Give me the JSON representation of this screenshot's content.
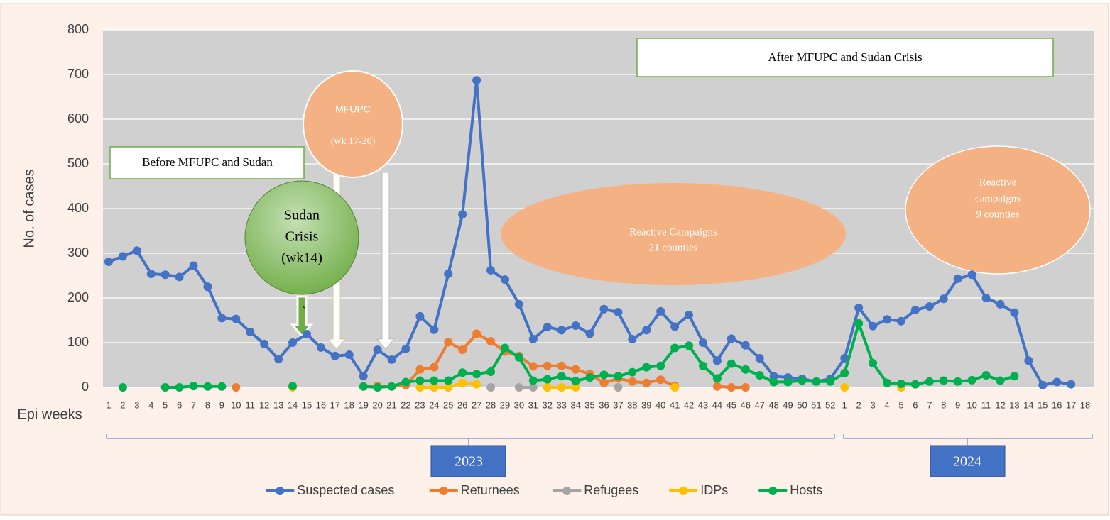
{
  "chart_data": {
    "type": "line",
    "y_label": "No. of cases",
    "x_label": "Epi weeks",
    "categories": [
      "1",
      "2",
      "3",
      "4",
      "5",
      "6",
      "7",
      "8",
      "9",
      "10",
      "11",
      "12",
      "13",
      "14",
      "15",
      "16",
      "17",
      "18",
      "19",
      "20",
      "21",
      "22",
      "23",
      "24",
      "25",
      "26",
      "27",
      "28",
      "29",
      "30",
      "31",
      "32",
      "33",
      "34",
      "35",
      "36",
      "37",
      "38",
      "39",
      "40",
      "41",
      "42",
      "43",
      "44",
      "45",
      "46",
      "47",
      "48",
      "49",
      "50",
      "51",
      "52",
      "1",
      "2",
      "3",
      "4",
      "5",
      "6",
      "7",
      "8",
      "9",
      "10",
      "11",
      "12",
      "13",
      "14",
      "15",
      "16",
      "17",
      "18"
    ],
    "x_groups": [
      "2023",
      "2024"
    ],
    "ylim": [
      0,
      800
    ],
    "yticks": [
      0,
      100,
      200,
      300,
      400,
      500,
      600,
      700,
      800
    ],
    "grid": true,
    "legend": "bottom",
    "series": [
      {
        "name": "Suspected cases",
        "color": "#4472c4",
        "values": [
          281,
          293,
          306,
          254,
          252,
          247,
          272,
          225,
          155,
          153,
          124,
          97,
          63,
          100,
          119,
          89,
          70,
          73,
          25,
          84,
          62,
          86,
          159,
          129,
          254,
          387,
          687,
          262,
          241,
          186,
          108,
          135,
          128,
          138,
          120,
          175,
          168,
          108,
          128,
          170,
          136,
          162,
          100,
          60,
          109,
          94,
          65,
          25,
          22,
          19,
          13,
          19,
          65,
          178,
          137,
          152,
          148,
          173,
          181,
          198,
          243,
          252,
          200,
          186,
          167,
          60,
          5,
          12,
          7,
          null
        ]
      },
      {
        "name": "Returnees",
        "color": "#ed7d31",
        "values": [
          null,
          null,
          null,
          null,
          null,
          null,
          null,
          null,
          null,
          0,
          null,
          null,
          null,
          null,
          null,
          null,
          null,
          null,
          2,
          3,
          2,
          5,
          40,
          45,
          101,
          84,
          120,
          103,
          80,
          70,
          47,
          48,
          48,
          40,
          30,
          10,
          20,
          13,
          10,
          17,
          3,
          null,
          null,
          2,
          0,
          0,
          null,
          null,
          null,
          null,
          null,
          null,
          null,
          null,
          null,
          null,
          null,
          null,
          null,
          null,
          null,
          null,
          null,
          null,
          null,
          null,
          null,
          null,
          null,
          null
        ]
      },
      {
        "name": "Refugees",
        "color": "#a5a5a5",
        "values": [
          null,
          null,
          null,
          null,
          null,
          null,
          null,
          null,
          null,
          null,
          null,
          null,
          null,
          null,
          null,
          null,
          null,
          null,
          null,
          null,
          null,
          null,
          null,
          null,
          null,
          null,
          null,
          0,
          null,
          0,
          0,
          null,
          null,
          null,
          null,
          null,
          0,
          null,
          null,
          null,
          null,
          null,
          null,
          null,
          null,
          null,
          null,
          null,
          null,
          null,
          null,
          null,
          null,
          null,
          null,
          null,
          null,
          null,
          null,
          null,
          null,
          null,
          null,
          null,
          null,
          null,
          null,
          null,
          null,
          null
        ]
      },
      {
        "name": "IDPs",
        "color": "#ffc000",
        "values": [
          null,
          null,
          null,
          null,
          null,
          null,
          null,
          null,
          null,
          null,
          null,
          null,
          null,
          0,
          null,
          null,
          null,
          null,
          null,
          null,
          null,
          null,
          0,
          0,
          0,
          10,
          7,
          null,
          null,
          null,
          null,
          0,
          0,
          0,
          null,
          null,
          null,
          null,
          null,
          null,
          0,
          null,
          null,
          null,
          null,
          null,
          null,
          null,
          null,
          null,
          null,
          null,
          0,
          null,
          null,
          null,
          0,
          null,
          null,
          null,
          null,
          null,
          null,
          null,
          null,
          null,
          null,
          null,
          null,
          null
        ]
      },
      {
        "name": "Hosts",
        "color": "#00b050",
        "values": [
          null,
          0,
          null,
          null,
          0,
          0,
          3,
          2,
          2,
          null,
          null,
          null,
          null,
          3,
          null,
          null,
          null,
          null,
          2,
          0,
          2,
          12,
          15,
          15,
          15,
          33,
          30,
          35,
          88,
          67,
          15,
          18,
          25,
          14,
          22,
          28,
          25,
          34,
          45,
          48,
          88,
          93,
          48,
          20,
          53,
          40,
          27,
          12,
          12,
          15,
          13,
          13,
          32,
          143,
          54,
          10,
          8,
          7,
          13,
          15,
          13,
          16,
          27,
          15,
          25,
          null,
          null,
          null,
          null,
          null
        ]
      }
    ],
    "annotations": [
      {
        "lines": [
          "Before MFUPC and Sudan"
        ]
      },
      {
        "lines": [
          "After MFUPC and Sudan Crisis"
        ]
      },
      {
        "lines": [
          "MFUPC",
          "(wk 17-20)"
        ]
      },
      {
        "lines": [
          "Sudan",
          "Crisis",
          "(wk14)"
        ]
      },
      {
        "lines": [
          "Reactive Campaigns",
          "21 counties"
        ]
      },
      {
        "lines": [
          "Reactive",
          "campaigns",
          "9 counties"
        ]
      },
      {
        "lines": [
          "`"
        ]
      }
    ]
  }
}
